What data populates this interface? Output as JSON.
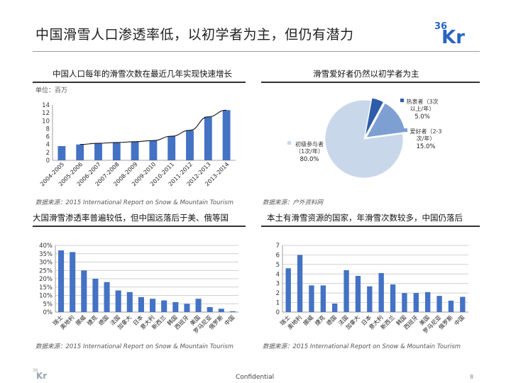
{
  "header": {
    "title": "中国滑雪人口渗透率低，以初学者为主，但仍有潜力",
    "logo_text": "36Kr"
  },
  "footer": {
    "confidential": "Confidential",
    "page": "8",
    "logo_text": "36Kr"
  },
  "colors": {
    "bar": "#4472c4",
    "bar_dark": "#2f5597",
    "grid": "#bfbfbf",
    "pie_main": "#c9d7ea",
    "pie_dark": "#2e5ca8",
    "pie_mid": "#7e9fd2"
  },
  "panels": {
    "tl": {
      "title": "中国人口每年的滑雪次数在最近几年实现快速增长",
      "unit": "单位：百万",
      "source": "数据来源：2015 International Report on Snow & Mountain Tourism"
    },
    "tr": {
      "title": "滑雪爱好者仍然以初学者为主",
      "source": "数据来源：户外资料网"
    },
    "bl": {
      "title": "大国滑雪渗透率普遍较低，但中国远落后于美、俄等国",
      "source": "数据来源：2015 International Report on Snow & Mountain Tourism"
    },
    "br": {
      "title": "本土有滑雪资源的国家，年滑雪次数较多，中国仍落后",
      "source": "数据来源：2015 International Report on Snow & Mountain Tourism"
    }
  },
  "chart_data": [
    {
      "type": "bar",
      "title": "中国人口每年的滑雪次数在最近几年实现快速增长",
      "categories": [
        "2004-2005",
        "2005-2006",
        "2006-2007",
        "2007-2008",
        "2008-2009",
        "2009-2010",
        "2010-2011",
        "2011-2012",
        "2012-2013",
        "2013-2014"
      ],
      "values": [
        3.6,
        4.0,
        4.3,
        4.5,
        4.7,
        5.0,
        6.1,
        7.6,
        11.0,
        12.7
      ],
      "trendline": true,
      "ylim": [
        0,
        14
      ],
      "yticks": [
        0,
        2,
        4,
        6,
        8,
        10,
        12,
        14
      ],
      "grid": false
    },
    {
      "type": "pie",
      "title": "滑雪爱好者仍然以初学者为主",
      "slices": [
        {
          "label": "热衷者（3次以上/年）",
          "label_lines": [
            "热衷者（3次",
            "以上/年）"
          ],
          "value": 5.0,
          "value_label": "5.0%"
        },
        {
          "label": "爱好者（2-3次/年）",
          "label_lines": [
            "爱好者（2-3",
            "次/年）"
          ],
          "value": 15.0,
          "value_label": "15.0%"
        },
        {
          "label": "初级参与者（1次/年）",
          "label_lines": [
            "初级参与者",
            "（1次/年）"
          ],
          "value": 80.0,
          "value_label": "80.0%"
        }
      ]
    },
    {
      "type": "bar",
      "title": "大国滑雪渗透率普遍较低，但中国远落后于美、俄等国",
      "categories": [
        "瑞士",
        "奥地利",
        "挪威",
        "捷克",
        "德国",
        "法国",
        "加拿大",
        "日本",
        "意大利",
        "新西兰",
        "韩国",
        "西班牙",
        "美国",
        "罗马尼亚",
        "俄罗斯",
        "中国"
      ],
      "values": [
        37,
        36,
        25,
        20,
        18,
        13,
        12,
        9,
        8,
        7,
        6,
        5,
        8,
        3,
        2,
        0.5
      ],
      "ylim": [
        0,
        40
      ],
      "yticks": [
        "0%",
        "5%",
        "10%",
        "15%",
        "20%",
        "25%",
        "30%",
        "35%",
        "40%"
      ],
      "grid": true
    },
    {
      "type": "bar",
      "title": "本土有滑雪资源的国家，年滑雪次数较多，中国仍落后",
      "categories": [
        "瑞士",
        "奥地利",
        "挪威",
        "捷克",
        "德国",
        "法国",
        "加拿大",
        "日本",
        "意大利",
        "新西兰",
        "韩国",
        "西班牙",
        "美国",
        "罗马尼亚",
        "俄罗斯",
        "中国"
      ],
      "values": [
        4.6,
        6.0,
        2.8,
        2.8,
        0.9,
        4.4,
        3.8,
        2.7,
        4.1,
        2.9,
        2.0,
        2.0,
        2.1,
        1.7,
        1.2,
        1.6
      ],
      "ylim": [
        0,
        7
      ],
      "yticks": [
        0,
        1,
        2,
        3,
        4,
        5,
        6,
        7
      ],
      "grid": true
    }
  ]
}
